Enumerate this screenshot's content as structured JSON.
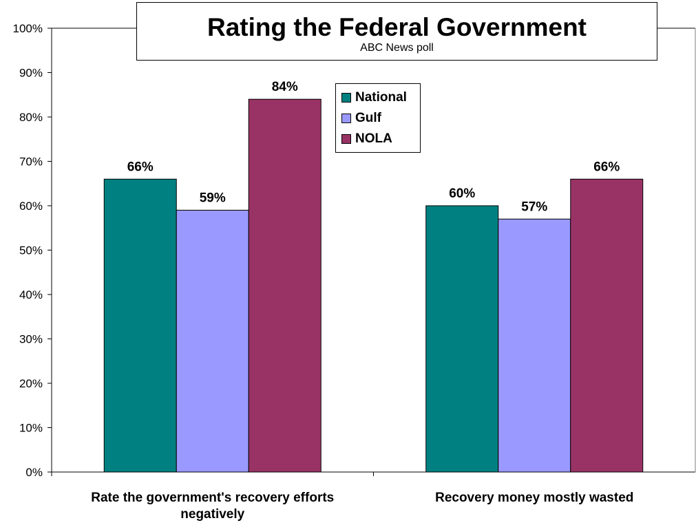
{
  "chart_data": {
    "type": "bar",
    "title": "Rating the Federal Government",
    "subtitle": "ABC News poll",
    "categories": [
      "Rate the government's recovery efforts negatively",
      "Recovery money mostly wasted"
    ],
    "category_lines": [
      [
        "Rate the government's recovery efforts",
        "negatively"
      ],
      [
        "Recovery money mostly wasted"
      ]
    ],
    "series": [
      {
        "name": "National",
        "values": [
          66,
          60
        ],
        "labels": [
          "66%",
          "60%"
        ],
        "color": "#008080"
      },
      {
        "name": "Gulf",
        "values": [
          59,
          57
        ],
        "labels": [
          "59%",
          "57%"
        ],
        "color": "#9999FF"
      },
      {
        "name": "NOLA",
        "values": [
          84,
          66
        ],
        "labels": [
          "84%",
          "66%"
        ],
        "color": "#993366"
      }
    ],
    "ylim": [
      0,
      100
    ],
    "yticks": [
      "0%",
      "10%",
      "20%",
      "30%",
      "40%",
      "50%",
      "60%",
      "70%",
      "80%",
      "90%",
      "100%"
    ],
    "xlabel": "",
    "ylabel": "",
    "legend_position": "top-center",
    "grid": false
  }
}
